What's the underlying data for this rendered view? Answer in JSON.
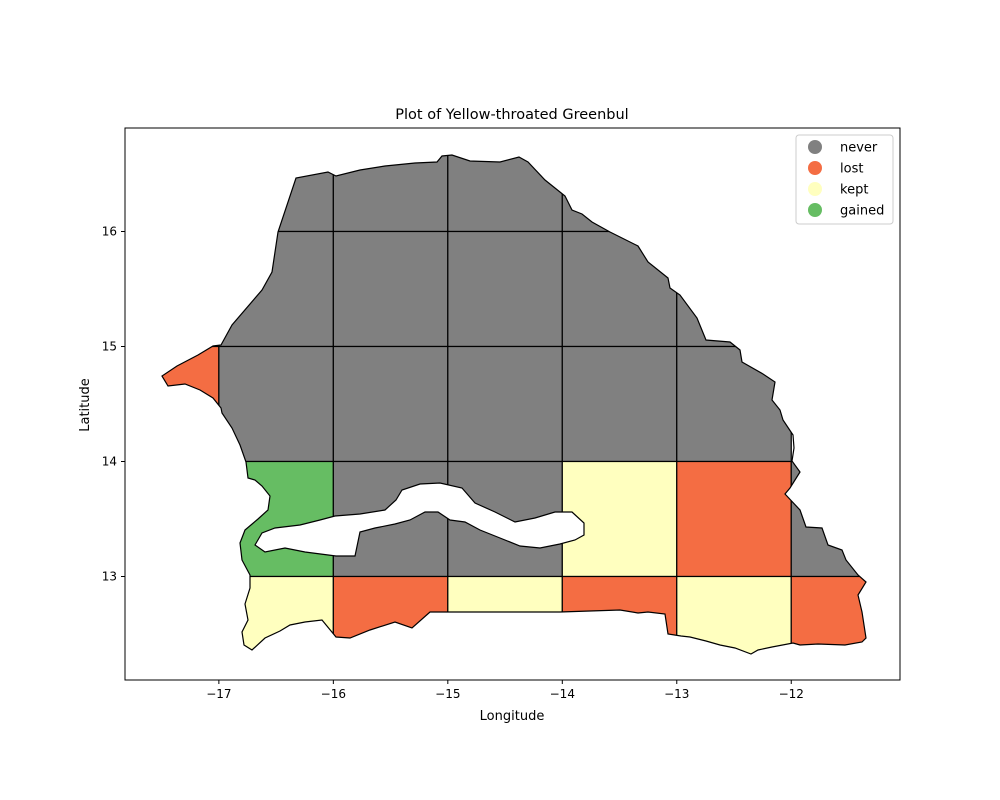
{
  "figure": {
    "title": "Plot of Yellow-throated Greenbul",
    "xlabel": "Longitude",
    "ylabel": "Latitude"
  },
  "axes": {
    "xlim": [
      -17.82,
      -11.05
    ],
    "ylim": [
      12.1,
      16.9
    ],
    "xticks": [
      {
        "value": -17,
        "label": "−17"
      },
      {
        "value": -16,
        "label": "−16"
      },
      {
        "value": -15,
        "label": "−15"
      },
      {
        "value": -14,
        "label": "−14"
      },
      {
        "value": -13,
        "label": "−13"
      },
      {
        "value": -12,
        "label": "−12"
      }
    ],
    "yticks": [
      {
        "value": 13,
        "label": "13"
      },
      {
        "value": 14,
        "label": "14"
      },
      {
        "value": 15,
        "label": "15"
      },
      {
        "value": 16,
        "label": "16"
      }
    ]
  },
  "legend": {
    "placement": "top-right",
    "entries": [
      {
        "key": "never",
        "label": "never",
        "color": "#808080"
      },
      {
        "key": "lost",
        "label": "lost",
        "color": "#f46d43"
      },
      {
        "key": "kept",
        "label": "kept",
        "color": "#ffffbf"
      },
      {
        "key": "gained",
        "label": "gained",
        "color": "#66bd63"
      }
    ]
  },
  "chart_data": {
    "type": "map",
    "region": "Senegal",
    "grid_cell_size_degrees": 1,
    "cells": [
      {
        "lon": [
          -17,
          -16
        ],
        "lat": [
          16,
          17
        ],
        "status": "never"
      },
      {
        "lon": [
          -16,
          -15
        ],
        "lat": [
          16,
          17
        ],
        "status": "never"
      },
      {
        "lon": [
          -15,
          -14
        ],
        "lat": [
          16,
          17
        ],
        "status": "never"
      },
      {
        "lon": [
          -14,
          -13
        ],
        "lat": [
          16,
          17
        ],
        "status": "never"
      },
      {
        "lon": [
          -17,
          -16
        ],
        "lat": [
          15,
          16
        ],
        "status": "never"
      },
      {
        "lon": [
          -16,
          -15
        ],
        "lat": [
          15,
          16
        ],
        "status": "never"
      },
      {
        "lon": [
          -15,
          -14
        ],
        "lat": [
          15,
          16
        ],
        "status": "never"
      },
      {
        "lon": [
          -14,
          -13
        ],
        "lat": [
          15,
          16
        ],
        "status": "never"
      },
      {
        "lon": [
          -13,
          -12
        ],
        "lat": [
          15,
          16
        ],
        "status": "never"
      },
      {
        "lon": [
          -18,
          -17
        ],
        "lat": [
          14,
          15
        ],
        "status": "lost"
      },
      {
        "lon": [
          -17,
          -16
        ],
        "lat": [
          14,
          15
        ],
        "status": "never"
      },
      {
        "lon": [
          -16,
          -15
        ],
        "lat": [
          14,
          15
        ],
        "status": "never"
      },
      {
        "lon": [
          -15,
          -14
        ],
        "lat": [
          14,
          15
        ],
        "status": "never"
      },
      {
        "lon": [
          -14,
          -13
        ],
        "lat": [
          14,
          15
        ],
        "status": "never"
      },
      {
        "lon": [
          -13,
          -12
        ],
        "lat": [
          14,
          15
        ],
        "status": "never"
      },
      {
        "lon": [
          -17,
          -16
        ],
        "lat": [
          13,
          14
        ],
        "status": "gained"
      },
      {
        "lon": [
          -16,
          -15
        ],
        "lat": [
          13,
          14
        ],
        "status": "never"
      },
      {
        "lon": [
          -15,
          -14
        ],
        "lat": [
          13,
          14
        ],
        "status": "never"
      },
      {
        "lon": [
          -14,
          -13
        ],
        "lat": [
          13,
          14
        ],
        "status": "kept"
      },
      {
        "lon": [
          -13,
          -12
        ],
        "lat": [
          13,
          14
        ],
        "status": "lost"
      },
      {
        "lon": [
          -12,
          -11
        ],
        "lat": [
          13,
          14
        ],
        "status": "never"
      },
      {
        "lon": [
          -17,
          -16
        ],
        "lat": [
          12,
          13
        ],
        "status": "kept"
      },
      {
        "lon": [
          -16,
          -15
        ],
        "lat": [
          12,
          13
        ],
        "status": "lost"
      },
      {
        "lon": [
          -15,
          -14
        ],
        "lat": [
          12,
          13
        ],
        "status": "kept"
      },
      {
        "lon": [
          -14,
          -13
        ],
        "lat": [
          12,
          13
        ],
        "status": "lost"
      },
      {
        "lon": [
          -13,
          -12
        ],
        "lat": [
          12,
          13
        ],
        "status": "kept"
      },
      {
        "lon": [
          -12,
          -11
        ],
        "lat": [
          12,
          13
        ],
        "status": "lost"
      }
    ],
    "title": "Plot of Yellow-throated Greenbul",
    "xlabel": "Longitude",
    "ylabel": "Latitude"
  }
}
